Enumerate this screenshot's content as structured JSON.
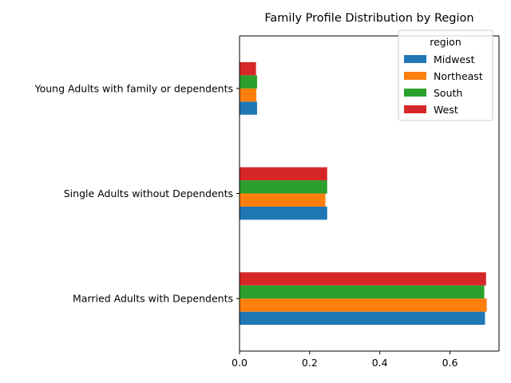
{
  "chart_data": {
    "type": "bar",
    "orientation": "horizontal",
    "title": "Family Profile Distribution by Region",
    "xlabel": "",
    "ylabel": "",
    "categories": [
      "Married Adults with Dependents",
      "Single Adults without Dependents",
      "Young Adults with family or dependents"
    ],
    "series": [
      {
        "name": "Midwest",
        "color": "#1f77b4",
        "values": [
          0.7,
          0.25,
          0.05
        ]
      },
      {
        "name": "Northeast",
        "color": "#ff7f0e",
        "values": [
          0.705,
          0.245,
          0.048
        ]
      },
      {
        "name": "South",
        "color": "#2ca02c",
        "values": [
          0.698,
          0.25,
          0.05
        ]
      },
      {
        "name": "West",
        "color": "#d62728",
        "values": [
          0.703,
          0.25,
          0.047
        ]
      }
    ],
    "xlim": [
      0,
      0.74
    ],
    "xticks": [
      0.0,
      0.2,
      0.4,
      0.6
    ],
    "xtick_labels": [
      "0.0",
      "0.2",
      "0.4",
      "0.6"
    ],
    "grid": false,
    "legend": {
      "title": "region",
      "position": "top-right"
    }
  }
}
